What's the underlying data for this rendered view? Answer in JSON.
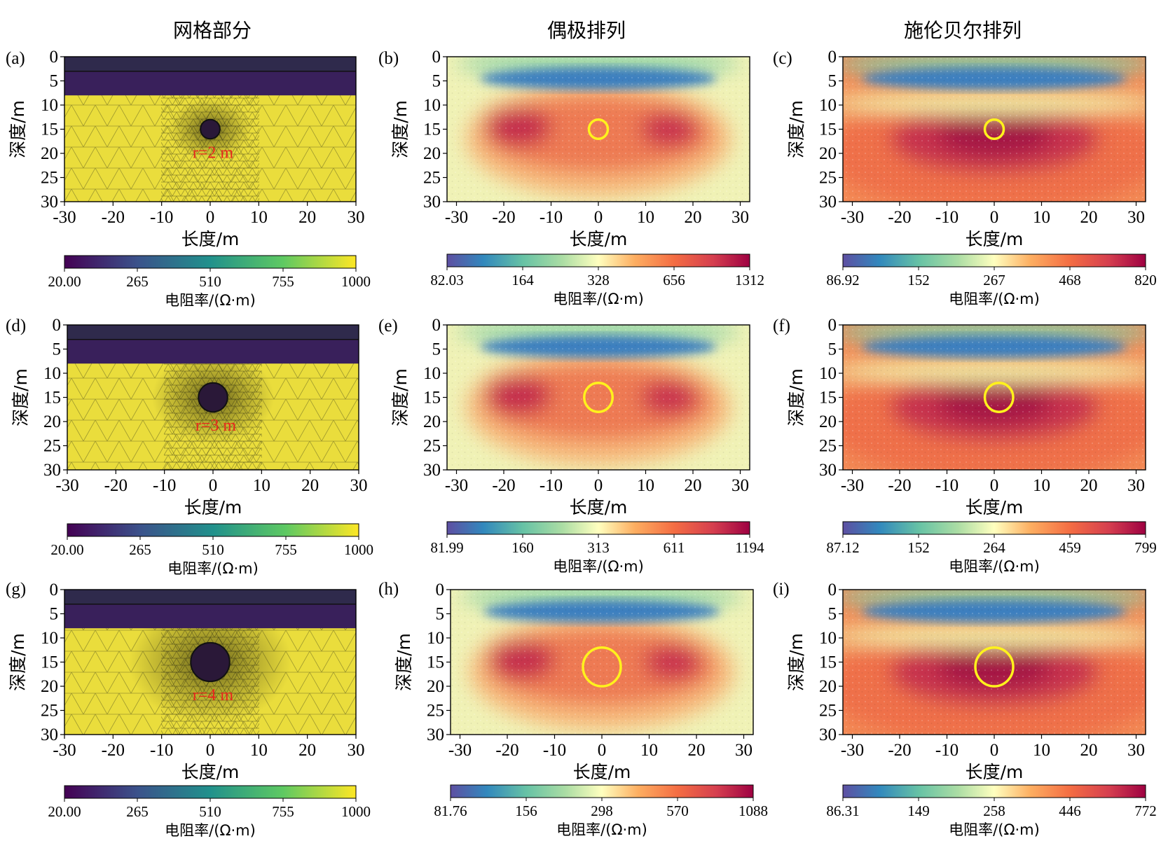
{
  "column_titles": [
    "网格部分",
    "偶极排列",
    "施伦贝尔排列"
  ],
  "panel_labels": [
    "(a)",
    "(b)",
    "(c)",
    "(d)",
    "(e)",
    "(f)",
    "(g)",
    "(h)",
    "(i)"
  ],
  "axis": {
    "xlabel": "长度/m",
    "ylabel": "深度/m"
  },
  "colorbar_label": "电阻率/(Ω·m)",
  "radius_labels": [
    "r=2 m",
    "r=3 m",
    "r=4 m"
  ],
  "colors": {
    "viridis_dark": "#39205b",
    "viridis_yellow": "#eadd3c",
    "anomaly_outline": "#fff21c",
    "radius_text": "#e8261c"
  },
  "chart_data": [
    {
      "id": "a",
      "type": "heatmap",
      "panel_label": "(a)",
      "kind": "mesh",
      "colormap": "viridis",
      "xlim": [
        -30,
        30
      ],
      "ylim": [
        0,
        30
      ],
      "y_inverted": true,
      "x_ticks": [
        -30,
        -20,
        -10,
        0,
        10,
        20,
        30
      ],
      "y_ticks": [
        0,
        5,
        10,
        15,
        20,
        25,
        30
      ],
      "xlabel": "长度/m",
      "ylabel": "深度/m",
      "layers": [
        {
          "top": 0,
          "bottom": 3,
          "resistivity": 20
        },
        {
          "top": 3,
          "bottom": 8,
          "resistivity": 20
        },
        {
          "top": 8,
          "bottom": 30,
          "resistivity": 1000
        }
      ],
      "anomaly": {
        "center_x": 0,
        "center_depth": 15,
        "radius": 2,
        "label": "r=2 m"
      },
      "colorbar": {
        "ticks": [
          "20.00",
          "265",
          "510",
          "755",
          "1000"
        ],
        "label": "电阻率/(Ω·m)"
      }
    },
    {
      "id": "b",
      "type": "heatmap",
      "panel_label": "(b)",
      "kind": "dipole",
      "colormap": "spectral",
      "xlim": [
        -32,
        32
      ],
      "ylim": [
        0,
        30
      ],
      "y_inverted": true,
      "x_ticks": [
        -30,
        -20,
        -10,
        0,
        10,
        20,
        30
      ],
      "y_ticks": [
        0,
        5,
        10,
        15,
        20,
        25,
        30
      ],
      "xlabel": "长度/m",
      "ylabel": "深度/m",
      "anomaly": {
        "center_x": 0,
        "center_depth": 15,
        "radius": 2
      },
      "colorbar": {
        "ticks": [
          "82.03",
          "164",
          "328",
          "656",
          "1312"
        ],
        "label": "电阻率/(Ω·m)"
      }
    },
    {
      "id": "c",
      "type": "heatmap",
      "panel_label": "(c)",
      "kind": "schlumberger",
      "colormap": "spectral",
      "xlim": [
        -32,
        32
      ],
      "ylim": [
        0,
        30
      ],
      "y_inverted": true,
      "x_ticks": [
        -30,
        -20,
        -10,
        0,
        10,
        20,
        30
      ],
      "y_ticks": [
        0,
        5,
        10,
        15,
        20,
        25,
        30
      ],
      "xlabel": "长度/m",
      "ylabel": "深度/m",
      "anomaly": {
        "center_x": 0,
        "center_depth": 15,
        "radius": 2
      },
      "colorbar": {
        "ticks": [
          "86.92",
          "152",
          "267",
          "468",
          "820"
        ],
        "label": "电阻率/(Ω·m)"
      }
    },
    {
      "id": "d",
      "type": "heatmap",
      "panel_label": "(d)",
      "kind": "mesh",
      "colormap": "viridis",
      "xlim": [
        -30,
        30
      ],
      "ylim": [
        0,
        30
      ],
      "y_inverted": true,
      "x_ticks": [
        -30,
        -20,
        -10,
        0,
        10,
        20,
        30
      ],
      "y_ticks": [
        0,
        5,
        10,
        15,
        20,
        25,
        30
      ],
      "xlabel": "长度/m",
      "ylabel": "深度/m",
      "layers": [
        {
          "top": 0,
          "bottom": 3,
          "resistivity": 20
        },
        {
          "top": 3,
          "bottom": 8,
          "resistivity": 20
        },
        {
          "top": 8,
          "bottom": 30,
          "resistivity": 1000
        }
      ],
      "anomaly": {
        "center_x": 0,
        "center_depth": 15,
        "radius": 3,
        "label": "r=3 m"
      },
      "colorbar": {
        "ticks": [
          "20.00",
          "265",
          "510",
          "755",
          "1000"
        ],
        "label": "电阻率/(Ω·m)"
      }
    },
    {
      "id": "e",
      "type": "heatmap",
      "panel_label": "(e)",
      "kind": "dipole",
      "colormap": "spectral",
      "xlim": [
        -32,
        32
      ],
      "ylim": [
        0,
        30
      ],
      "y_inverted": true,
      "x_ticks": [
        -30,
        -20,
        -10,
        0,
        10,
        20,
        30
      ],
      "y_ticks": [
        0,
        5,
        10,
        15,
        20,
        25,
        30
      ],
      "xlabel": "长度/m",
      "ylabel": "深度/m",
      "anomaly": {
        "center_x": 0,
        "center_depth": 15,
        "radius": 3
      },
      "colorbar": {
        "ticks": [
          "81.99",
          "160",
          "313",
          "611",
          "1194"
        ],
        "label": "电阻率/(Ω·m)"
      }
    },
    {
      "id": "f",
      "type": "heatmap",
      "panel_label": "(f)",
      "kind": "schlumberger",
      "colormap": "spectral",
      "xlim": [
        -32,
        32
      ],
      "ylim": [
        0,
        30
      ],
      "y_inverted": true,
      "x_ticks": [
        -30,
        -20,
        -10,
        0,
        10,
        20,
        30
      ],
      "y_ticks": [
        0,
        5,
        10,
        15,
        20,
        25,
        30
      ],
      "xlabel": "长度/m",
      "ylabel": "深度/m",
      "anomaly": {
        "center_x": 1,
        "center_depth": 15,
        "radius": 3
      },
      "colorbar": {
        "ticks": [
          "87.12",
          "152",
          "264",
          "459",
          "799"
        ],
        "label": "电阻率/(Ω·m)"
      }
    },
    {
      "id": "g",
      "type": "heatmap",
      "panel_label": "(g)",
      "kind": "mesh",
      "colormap": "viridis",
      "xlim": [
        -30,
        30
      ],
      "ylim": [
        0,
        30
      ],
      "y_inverted": true,
      "x_ticks": [
        -30,
        -20,
        -10,
        0,
        10,
        20,
        30
      ],
      "y_ticks": [
        0,
        5,
        10,
        15,
        20,
        25,
        30
      ],
      "xlabel": "长度/m",
      "ylabel": "深度/m",
      "layers": [
        {
          "top": 0,
          "bottom": 3,
          "resistivity": 20
        },
        {
          "top": 3,
          "bottom": 8,
          "resistivity": 20
        },
        {
          "top": 8,
          "bottom": 30,
          "resistivity": 1000
        }
      ],
      "anomaly": {
        "center_x": 0,
        "center_depth": 15,
        "radius": 4,
        "label": "r=4 m"
      },
      "colorbar": {
        "ticks": [
          "20.00",
          "265",
          "510",
          "755",
          "1000"
        ],
        "label": "电阻率/(Ω·m)"
      }
    },
    {
      "id": "h",
      "type": "heatmap",
      "panel_label": "(h)",
      "kind": "dipole",
      "colormap": "spectral",
      "xlim": [
        -32,
        32
      ],
      "ylim": [
        0,
        30
      ],
      "y_inverted": true,
      "x_ticks": [
        -30,
        -20,
        -10,
        0,
        10,
        20,
        30
      ],
      "y_ticks": [
        0,
        5,
        10,
        15,
        20,
        25,
        30
      ],
      "xlabel": "长度/m",
      "ylabel": "深度/m",
      "anomaly": {
        "center_x": 0,
        "center_depth": 16,
        "radius": 4
      },
      "colorbar": {
        "ticks": [
          "81.76",
          "156",
          "298",
          "570",
          "1088"
        ],
        "label": "电阻率/(Ω·m)"
      }
    },
    {
      "id": "i",
      "type": "heatmap",
      "panel_label": "(i)",
      "kind": "schlumberger",
      "colormap": "spectral",
      "xlim": [
        -32,
        32
      ],
      "ylim": [
        0,
        30
      ],
      "y_inverted": true,
      "x_ticks": [
        -30,
        -20,
        -10,
        0,
        10,
        20,
        30
      ],
      "y_ticks": [
        0,
        5,
        10,
        15,
        20,
        25,
        30
      ],
      "xlabel": "长度/m",
      "ylabel": "深度/m",
      "anomaly": {
        "center_x": 0,
        "center_depth": 16,
        "radius": 4
      },
      "colorbar": {
        "ticks": [
          "86.31",
          "149",
          "258",
          "446",
          "772"
        ],
        "label": "电阻率/(Ω·m)"
      }
    }
  ]
}
